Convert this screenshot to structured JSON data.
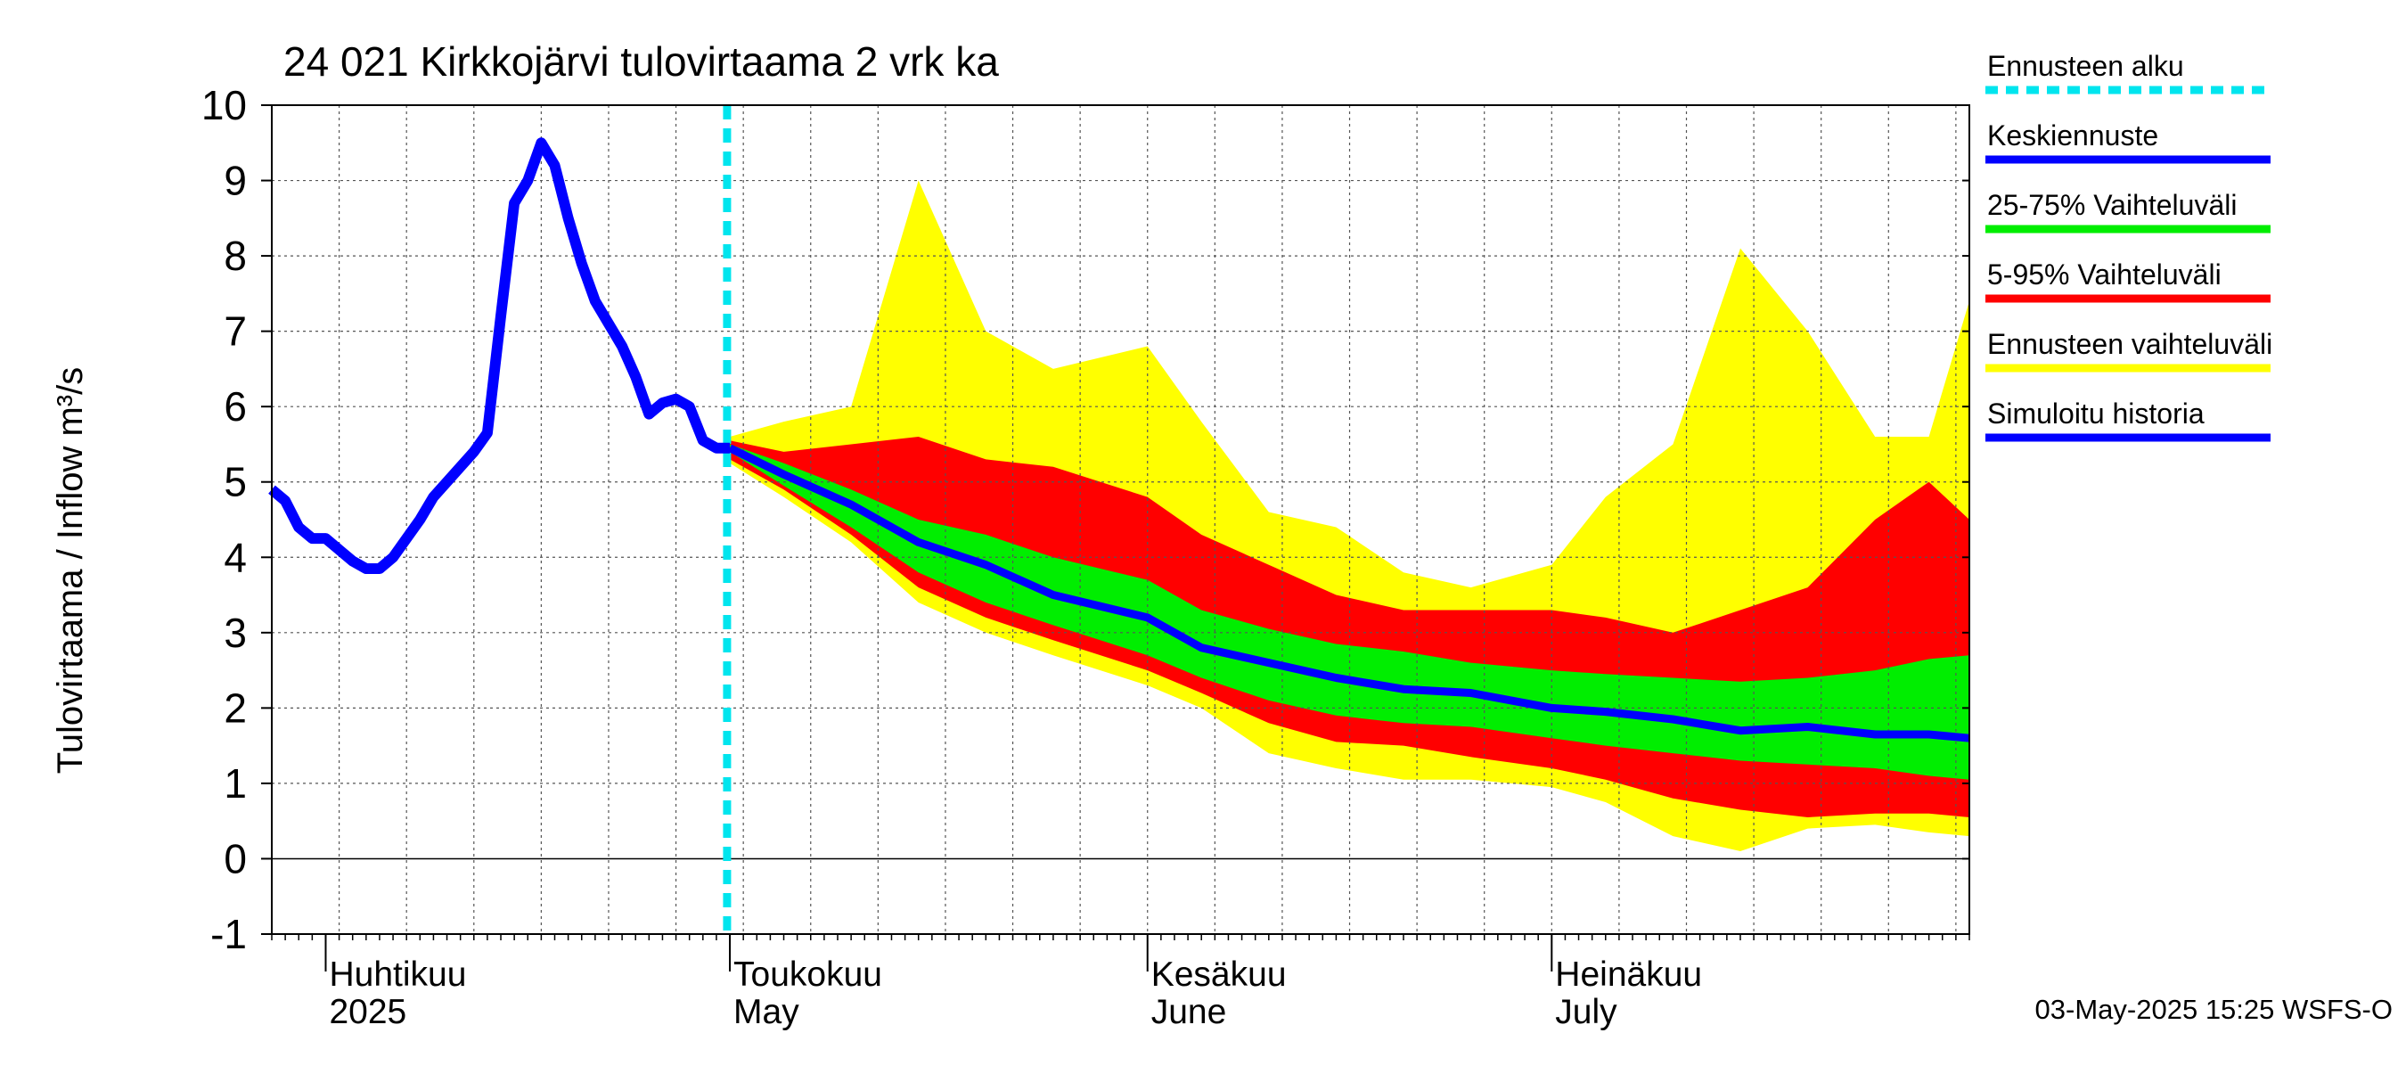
{
  "chart_data": {
    "type": "area",
    "title": "24 021 Kirkkojärvi tulovirtaama 2 vrk ka",
    "ylabel": "Tulovirtaama / Inflow    m³/s",
    "ylim": [
      -1,
      10
    ],
    "yticks": [
      -1,
      0,
      1,
      2,
      3,
      4,
      5,
      6,
      7,
      8,
      9,
      10
    ],
    "x_start": "2025-03-28",
    "x_end": "2025-08-01",
    "month_labels": [
      {
        "date": "2025-04-01",
        "line1": "Huhtikuu",
        "line2": "2025"
      },
      {
        "date": "2025-05-01",
        "line1": "Toukokuu",
        "line2": "May"
      },
      {
        "date": "2025-06-01",
        "line1": "Kesäkuu",
        "line2": "June"
      },
      {
        "date": "2025-07-01",
        "line1": "Heinäkuu",
        "line2": "July"
      }
    ],
    "forecast_start": "2025-04-30",
    "footer": "03-May-2025 15:25 WSFS-O",
    "colors": {
      "forecast_start": "#00e5ee",
      "median": "#0000ff",
      "band_25_75": "#00ee00",
      "band_5_95": "#ff0000",
      "band_range": "#ffff00",
      "history": "#0000ff"
    },
    "legend": {
      "placement": "right",
      "items": [
        {
          "label": "Ennusteen alku",
          "key": "forecast_start",
          "style": "dashed"
        },
        {
          "label": "Keskiennuste",
          "key": "median",
          "style": "line"
        },
        {
          "label": "25-75% Vaihteluväli",
          "key": "band_25_75",
          "style": "line"
        },
        {
          "label": "5-95% Vaihteluväli",
          "key": "band_5_95",
          "style": "line"
        },
        {
          "label": "Ennusteen vaihteluväli",
          "key": "band_range",
          "style": "line"
        },
        {
          "label": "Simuloitu historia",
          "key": "history",
          "style": "line"
        }
      ]
    },
    "history": {
      "x": [
        "2025-03-28",
        "2025-03-29",
        "2025-03-30",
        "2025-03-31",
        "2025-04-01",
        "2025-04-02",
        "2025-04-03",
        "2025-04-04",
        "2025-04-05",
        "2025-04-06",
        "2025-04-07",
        "2025-04-08",
        "2025-04-09",
        "2025-04-10",
        "2025-04-11",
        "2025-04-12",
        "2025-04-13",
        "2025-04-14",
        "2025-04-15",
        "2025-04-16",
        "2025-04-17",
        "2025-04-18",
        "2025-04-19",
        "2025-04-20",
        "2025-04-21",
        "2025-04-22",
        "2025-04-23",
        "2025-04-24",
        "2025-04-25",
        "2025-04-26",
        "2025-04-27",
        "2025-04-28",
        "2025-04-29",
        "2025-04-30",
        "2025-05-01"
      ],
      "y": [
        4.9,
        4.75,
        4.4,
        4.25,
        4.25,
        4.1,
        3.95,
        3.85,
        3.85,
        4.0,
        4.25,
        4.5,
        4.8,
        5.0,
        5.2,
        5.4,
        5.65,
        7.2,
        8.7,
        9.0,
        9.5,
        9.2,
        8.5,
        7.9,
        7.4,
        7.1,
        6.8,
        6.4,
        5.9,
        6.05,
        6.1,
        6.0,
        5.55,
        5.45,
        5.45
      ]
    },
    "forecast": {
      "x": [
        "2025-05-01",
        "2025-05-05",
        "2025-05-10",
        "2025-05-15",
        "2025-05-20",
        "2025-05-25",
        "2025-06-01",
        "2025-06-05",
        "2025-06-10",
        "2025-06-15",
        "2025-06-20",
        "2025-06-25",
        "2025-07-01",
        "2025-07-05",
        "2025-07-10",
        "2025-07-15",
        "2025-07-20",
        "2025-07-25",
        "2025-07-29",
        "2025-08-01"
      ],
      "median": [
        5.45,
        5.1,
        4.7,
        4.2,
        3.9,
        3.5,
        3.2,
        2.8,
        2.6,
        2.4,
        2.25,
        2.2,
        2.0,
        1.95,
        1.85,
        1.7,
        1.75,
        1.65,
        1.65,
        1.6
      ],
      "p25": [
        5.4,
        4.95,
        4.4,
        3.8,
        3.4,
        3.1,
        2.7,
        2.4,
        2.1,
        1.9,
        1.8,
        1.75,
        1.6,
        1.5,
        1.4,
        1.3,
        1.25,
        1.2,
        1.1,
        1.05
      ],
      "p75": [
        5.5,
        5.25,
        4.9,
        4.5,
        4.3,
        4.0,
        3.7,
        3.3,
        3.05,
        2.85,
        2.75,
        2.6,
        2.5,
        2.45,
        2.4,
        2.35,
        2.4,
        2.5,
        2.65,
        2.7
      ],
      "p5": [
        5.3,
        4.9,
        4.3,
        3.6,
        3.2,
        2.9,
        2.5,
        2.2,
        1.8,
        1.55,
        1.5,
        1.35,
        1.2,
        1.05,
        0.8,
        0.65,
        0.55,
        0.6,
        0.6,
        0.55
      ],
      "p95": [
        5.55,
        5.4,
        5.5,
        5.6,
        5.3,
        5.2,
        4.8,
        4.3,
        3.9,
        3.5,
        3.3,
        3.3,
        3.3,
        3.2,
        3.0,
        3.3,
        3.6,
        4.5,
        5.0,
        4.5
      ],
      "min": [
        5.25,
        4.8,
        4.2,
        3.4,
        3.0,
        2.7,
        2.3,
        2.0,
        1.4,
        1.2,
        1.05,
        1.05,
        0.95,
        0.75,
        0.3,
        0.1,
        0.4,
        0.45,
        0.35,
        0.3
      ],
      "max": [
        5.6,
        5.8,
        6.0,
        9.0,
        7.0,
        6.5,
        6.8,
        5.8,
        4.6,
        4.4,
        3.8,
        3.6,
        3.9,
        4.8,
        5.5,
        8.1,
        7.0,
        5.6,
        5.6,
        7.4
      ]
    }
  }
}
